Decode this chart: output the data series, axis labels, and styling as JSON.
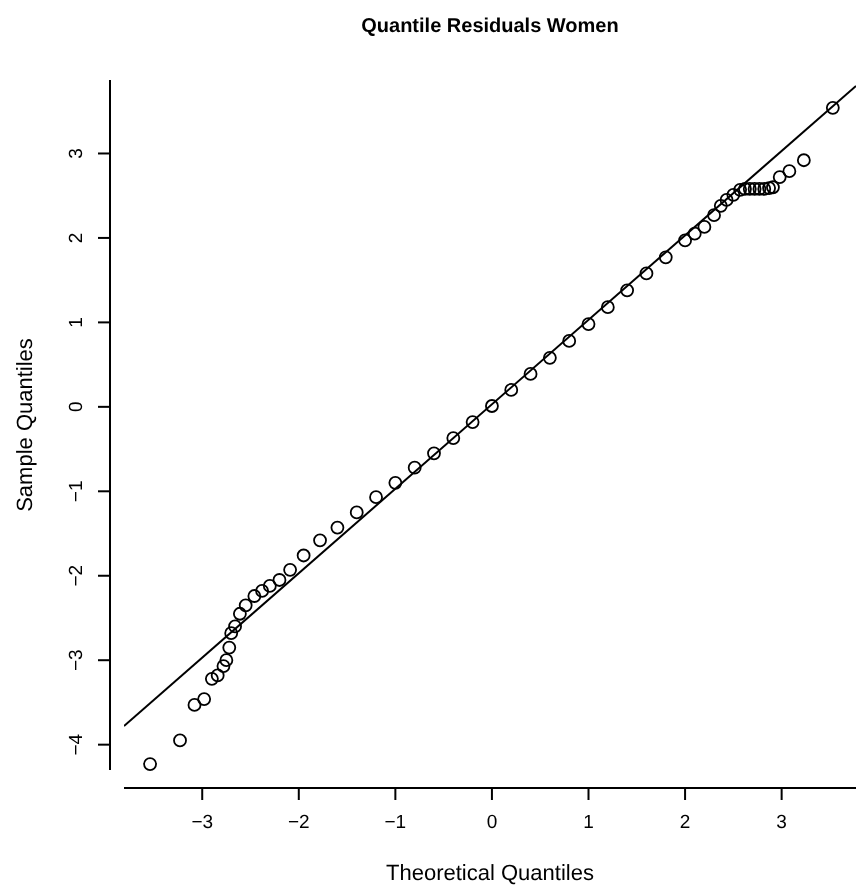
{
  "chart_data": {
    "type": "scatter",
    "title": "Quantile Residuals Women",
    "xlabel": "Theoretical Quantiles",
    "ylabel": "Sample Quantiles",
    "xlim": [
      -3.81,
      3.77
    ],
    "ylim": [
      -4.3,
      3.87
    ],
    "xticks": [
      {
        "value": -3,
        "label": "−3"
      },
      {
        "value": -2,
        "label": "−2"
      },
      {
        "value": -1,
        "label": "−1"
      },
      0,
      1,
      2,
      3
    ],
    "yticks": [
      {
        "value": -4,
        "label": "−4"
      },
      {
        "value": -3,
        "label": "−3"
      },
      {
        "value": -2,
        "label": "−2"
      },
      {
        "value": -1,
        "label": "−1"
      },
      0,
      1,
      2,
      3
    ],
    "marker": "circle",
    "grid": false,
    "series": [
      {
        "color": "#000000",
        "x": [
          -3.54,
          -3.23,
          -3.08,
          -2.98,
          -2.9,
          -2.84,
          -2.78,
          -2.75,
          -2.72,
          -2.7,
          -2.66,
          -2.61,
          -2.55,
          -2.46,
          -2.38,
          -2.3,
          -2.2,
          -2.09,
          -1.95,
          -1.78,
          -1.6,
          -1.4,
          -1.2,
          -1.0,
          -0.8,
          -0.6,
          -0.4,
          -0.2,
          0,
          0.2,
          0.4,
          0.6,
          0.8,
          1.0,
          1.2,
          1.4,
          1.6,
          1.8,
          2.0,
          2.1,
          2.2,
          2.3,
          2.37,
          2.43,
          2.5,
          2.57,
          2.62,
          2.67,
          2.72,
          2.77,
          2.82,
          2.87,
          2.91,
          2.98,
          3.08,
          3.23,
          3.53
        ],
        "values": [
          -4.23,
          -3.95,
          -3.53,
          -3.46,
          -3.22,
          -3.18,
          -3.07,
          -3.0,
          -2.85,
          -2.68,
          -2.6,
          -2.45,
          -2.35,
          -2.24,
          -2.18,
          -2.12,
          -2.05,
          -1.93,
          -1.76,
          -1.58,
          -1.43,
          -1.25,
          -1.07,
          -0.9,
          -0.72,
          -0.55,
          -0.37,
          -0.18,
          0.01,
          0.2,
          0.39,
          0.58,
          0.78,
          0.98,
          1.18,
          1.38,
          1.58,
          1.77,
          1.97,
          2.05,
          2.13,
          2.27,
          2.38,
          2.45,
          2.51,
          2.57,
          2.58,
          2.58,
          2.58,
          2.58,
          2.58,
          2.59,
          2.6,
          2.72,
          2.79,
          2.92,
          3.54
        ]
      },
      {
        "type": "line",
        "color": "#000000",
        "marker": "none",
        "x": [
          -3.81,
          3.77
        ],
        "values": [
          -3.78,
          3.8
        ]
      }
    ]
  }
}
